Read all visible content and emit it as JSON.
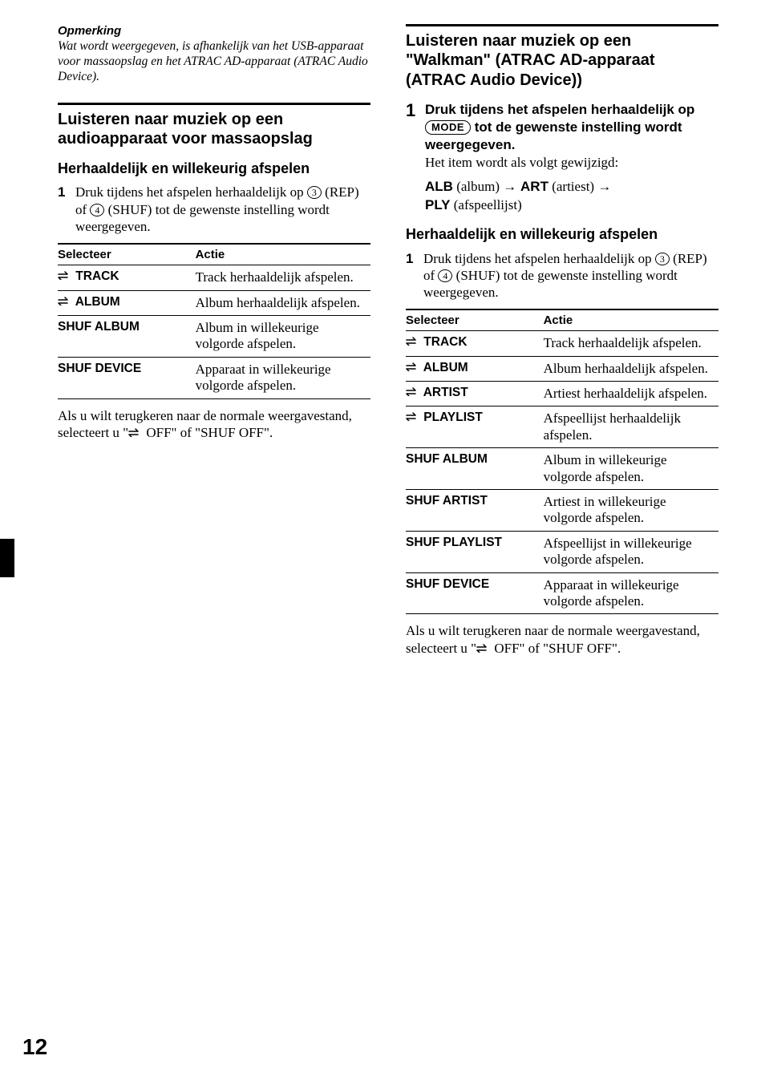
{
  "page_number": "12",
  "note": {
    "title": "Opmerking",
    "body": "Wat wordt weergegeven, is afhankelijk van het USB-apparaat voor massaopslag en het ATRAC AD-apparaat (ATRAC Audio Device)."
  },
  "left_section": {
    "heading": "Luisteren naar muziek op een audioapparaat voor massaopslag",
    "sub": "Herhaaldelijk en willekeurig afspelen",
    "step_num": "1",
    "step_pre": "Druk tijdens het afspelen herhaaldelijk op ",
    "circ1": "3",
    "step_mid1": " (REP) of ",
    "circ2": "4",
    "step_mid2": " (SHUF) tot de gewenste instelling wordt weergegeven.",
    "th1": "Selecteer",
    "th2": "Actie",
    "rows": [
      {
        "sel": " TRACK",
        "act": "Track herhaaldelijk afspelen.",
        "rep": true
      },
      {
        "sel": " ALBUM",
        "act": "Album herhaaldelijk afspelen.",
        "rep": true
      },
      {
        "sel": "SHUF ALBUM",
        "act": "Album in willekeurige volgorde afspelen.",
        "rep": false
      },
      {
        "sel": "SHUF DEVICE",
        "act": "Apparaat in willekeurige volgorde afspelen.",
        "rep": false
      }
    ],
    "follow_pre": "Als u wilt terugkeren naar de normale weergavestand, selecteert u \"",
    "follow_mid": " OFF\" of \"SHUF OFF\"."
  },
  "right_section": {
    "heading": "Luisteren naar muziek op een \"Walkman\" (ATRAC AD-apparaat (ATRAC Audio Device))",
    "step1_num": "1",
    "step1_bold_pre": "Druk tijdens het afspelen herhaaldelijk op ",
    "step1_bold_post": " tot de gewenste instelling wordt weergegeven.",
    "mode_label": "MODE",
    "step1_tail": "Het item wordt als volgt gewijzigd:",
    "seq_alb": "ALB",
    "seq_alb_p": " (album) ",
    "seq_art": "ART",
    "seq_art_p": " (artiest) ",
    "seq_ply": "PLY",
    "seq_ply_p": " (afspeellijst)",
    "sub": "Herhaaldelijk en willekeurig afspelen",
    "step_num": "1",
    "step_pre": "Druk tijdens het afspelen herhaaldelijk op ",
    "circ1": "3",
    "step_mid1": " (REP) of ",
    "circ2": "4",
    "step_mid2": " (SHUF) tot de gewenste instelling wordt weergegeven.",
    "th1": "Selecteer",
    "th2": "Actie",
    "rows": [
      {
        "sel": " TRACK",
        "act": "Track herhaaldelijk afspelen.",
        "rep": true
      },
      {
        "sel": " ALBUM",
        "act": "Album herhaaldelijk afspelen.",
        "rep": true
      },
      {
        "sel": " ARTIST",
        "act": "Artiest herhaaldelijk afspelen.",
        "rep": true
      },
      {
        "sel": " PLAYLIST",
        "act": "Afspeellijst herhaaldelijk afspelen.",
        "rep": true
      },
      {
        "sel": "SHUF ALBUM",
        "act": "Album in willekeurige volgorde afspelen.",
        "rep": false
      },
      {
        "sel": "SHUF ARTIST",
        "act": "Artiest in willekeurige volgorde afspelen.",
        "rep": false
      },
      {
        "sel": "SHUF PLAYLIST",
        "act": "Afspeellijst in willekeurige volgorde afspelen.",
        "rep": false
      },
      {
        "sel": "SHUF DEVICE",
        "act": "Apparaat in willekeurige volgorde afspelen.",
        "rep": false
      }
    ],
    "follow_pre": "Als u wilt terugkeren naar de normale weergavestand, selecteert u \"",
    "follow_mid": " OFF\" of \"SHUF OFF\"."
  }
}
